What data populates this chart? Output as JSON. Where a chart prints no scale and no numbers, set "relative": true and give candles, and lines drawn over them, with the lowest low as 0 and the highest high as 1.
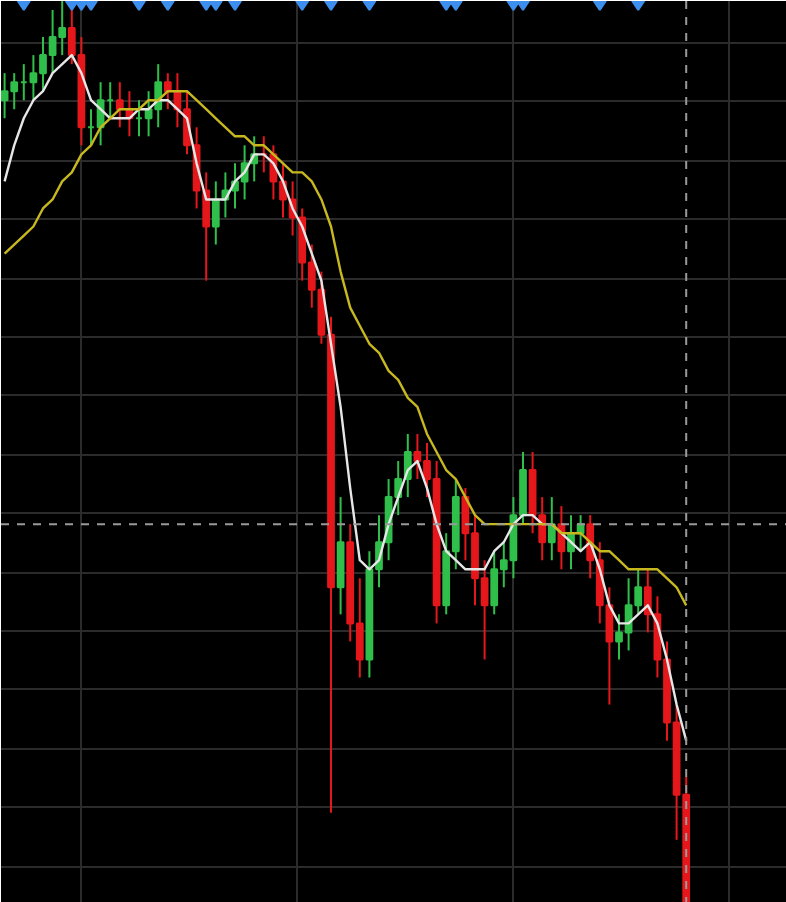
{
  "chart_data": {
    "type": "candlestick",
    "relative": true,
    "grid": true,
    "categories": [
      null,
      null,
      null,
      null,
      null,
      null,
      null,
      null,
      null,
      null,
      null,
      null,
      null,
      null,
      null,
      null,
      null,
      null,
      null,
      null,
      null,
      null,
      null,
      null,
      null,
      null,
      null,
      null,
      null,
      null,
      null,
      null,
      null,
      null,
      null,
      null,
      null,
      null,
      null,
      null,
      null,
      null,
      null,
      null,
      null,
      null,
      null,
      null,
      null,
      null,
      null,
      null,
      null,
      null,
      null,
      null,
      null,
      null,
      null,
      null,
      null,
      null,
      null,
      null,
      null,
      null,
      null,
      null,
      null,
      null,
      null,
      null
    ],
    "ohlc": [
      [
        0.89,
        0.92,
        0.87,
        0.9
      ],
      [
        0.9,
        0.92,
        0.88,
        0.91
      ],
      [
        0.91,
        0.93,
        0.89,
        0.91
      ],
      [
        0.91,
        0.94,
        0.89,
        0.92
      ],
      [
        0.92,
        0.96,
        0.9,
        0.94
      ],
      [
        0.94,
        0.99,
        0.92,
        0.96
      ],
      [
        0.96,
        1.0,
        0.94,
        0.97
      ],
      [
        0.97,
        0.99,
        0.93,
        0.94
      ],
      [
        0.94,
        0.96,
        0.84,
        0.86
      ],
      [
        0.86,
        0.88,
        0.84,
        0.86
      ],
      [
        0.86,
        0.91,
        0.84,
        0.89
      ],
      [
        0.89,
        0.91,
        0.87,
        0.89
      ],
      [
        0.89,
        0.91,
        0.86,
        0.88
      ],
      [
        0.88,
        0.9,
        0.85,
        0.87
      ],
      [
        0.87,
        0.89,
        0.85,
        0.87
      ],
      [
        0.87,
        0.9,
        0.85,
        0.88
      ],
      [
        0.88,
        0.93,
        0.86,
        0.91
      ],
      [
        0.91,
        0.92,
        0.88,
        0.9
      ],
      [
        0.9,
        0.92,
        0.86,
        0.88
      ],
      [
        0.88,
        0.9,
        0.83,
        0.84
      ],
      [
        0.84,
        0.86,
        0.77,
        0.79
      ],
      [
        0.79,
        0.81,
        0.69,
        0.75
      ],
      [
        0.75,
        0.8,
        0.73,
        0.78
      ],
      [
        0.78,
        0.81,
        0.76,
        0.79
      ],
      [
        0.79,
        0.82,
        0.77,
        0.8
      ],
      [
        0.8,
        0.84,
        0.78,
        0.82
      ],
      [
        0.82,
        0.85,
        0.8,
        0.83
      ],
      [
        0.83,
        0.85,
        0.81,
        0.83
      ],
      [
        0.83,
        0.84,
        0.78,
        0.8
      ],
      [
        0.8,
        0.82,
        0.76,
        0.78
      ],
      [
        0.78,
        0.8,
        0.74,
        0.76
      ],
      [
        0.76,
        0.77,
        0.69,
        0.71
      ],
      [
        0.71,
        0.73,
        0.66,
        0.68
      ],
      [
        0.68,
        0.7,
        0.62,
        0.63
      ],
      [
        0.63,
        0.65,
        0.1,
        0.35
      ],
      [
        0.35,
        0.45,
        0.32,
        0.4
      ],
      [
        0.4,
        0.42,
        0.29,
        0.31
      ],
      [
        0.31,
        0.36,
        0.25,
        0.27
      ],
      [
        0.27,
        0.39,
        0.25,
        0.37
      ],
      [
        0.37,
        0.43,
        0.35,
        0.4
      ],
      [
        0.4,
        0.47,
        0.38,
        0.45
      ],
      [
        0.45,
        0.49,
        0.43,
        0.47
      ],
      [
        0.47,
        0.52,
        0.45,
        0.5
      ],
      [
        0.5,
        0.52,
        0.47,
        0.49
      ],
      [
        0.49,
        0.51,
        0.45,
        0.47
      ],
      [
        0.47,
        0.49,
        0.31,
        0.33
      ],
      [
        0.33,
        0.41,
        0.32,
        0.39
      ],
      [
        0.39,
        0.47,
        0.37,
        0.45
      ],
      [
        0.45,
        0.46,
        0.38,
        0.41
      ],
      [
        0.41,
        0.43,
        0.33,
        0.36
      ],
      [
        0.36,
        0.38,
        0.27,
        0.33
      ],
      [
        0.33,
        0.39,
        0.32,
        0.37
      ],
      [
        0.37,
        0.4,
        0.35,
        0.38
      ],
      [
        0.38,
        0.45,
        0.36,
        0.43
      ],
      [
        0.43,
        0.5,
        0.42,
        0.48
      ],
      [
        0.48,
        0.5,
        0.41,
        0.43
      ],
      [
        0.43,
        0.45,
        0.38,
        0.4
      ],
      [
        0.4,
        0.45,
        0.38,
        0.42
      ],
      [
        0.42,
        0.44,
        0.37,
        0.39
      ],
      [
        0.39,
        0.43,
        0.37,
        0.41
      ],
      [
        0.41,
        0.43,
        0.39,
        0.42
      ],
      [
        0.42,
        0.43,
        0.36,
        0.38
      ],
      [
        0.38,
        0.4,
        0.31,
        0.33
      ],
      [
        0.33,
        0.35,
        0.22,
        0.29
      ],
      [
        0.29,
        0.32,
        0.27,
        0.3
      ],
      [
        0.3,
        0.36,
        0.28,
        0.33
      ],
      [
        0.33,
        0.37,
        0.32,
        0.35
      ],
      [
        0.35,
        0.37,
        0.3,
        0.32
      ],
      [
        0.32,
        0.34,
        0.25,
        0.27
      ],
      [
        0.27,
        0.29,
        0.18,
        0.2
      ],
      [
        0.2,
        0.22,
        0.07,
        0.12
      ],
      [
        0.12,
        0.14,
        0.0,
        0.0
      ]
    ],
    "colors": [
      "#2fbf4a",
      "#2fbf4a",
      "#2fbf4a",
      "#2fbf4a",
      "#2fbf4a",
      "#2fbf4a",
      "#2fbf4a",
      "#e5171b",
      "#e5171b",
      "#2fbf4a",
      "#2fbf4a",
      "#2fbf4a",
      "#e5171b",
      "#e5171b",
      "#2fbf4a",
      "#2fbf4a",
      "#2fbf4a",
      "#e5171b",
      "#e5171b",
      "#e5171b",
      "#e5171b",
      "#e5171b",
      "#2fbf4a",
      "#2fbf4a",
      "#2fbf4a",
      "#2fbf4a",
      "#2fbf4a",
      "#e5171b",
      "#e5171b",
      "#e5171b",
      "#e5171b",
      "#e5171b",
      "#e5171b",
      "#e5171b",
      "#e5171b",
      "#2fbf4a",
      "#e5171b",
      "#e5171b",
      "#2fbf4a",
      "#2fbf4a",
      "#2fbf4a",
      "#2fbf4a",
      "#2fbf4a",
      "#e5171b",
      "#e5171b",
      "#e5171b",
      "#2fbf4a",
      "#2fbf4a",
      "#e5171b",
      "#e5171b",
      "#e5171b",
      "#2fbf4a",
      "#2fbf4a",
      "#2fbf4a",
      "#2fbf4a",
      "#e5171b",
      "#e5171b",
      "#2fbf4a",
      "#e5171b",
      "#2fbf4a",
      "#2fbf4a",
      "#e5171b",
      "#e5171b",
      "#e5171b",
      "#2fbf4a",
      "#2fbf4a",
      "#2fbf4a",
      "#e5171b",
      "#e5171b",
      "#e5171b",
      "#e5171b",
      "#e5171b"
    ],
    "series": [
      {
        "type": "line",
        "color": "#e6e6e6",
        "values": [
          0.8,
          0.84,
          0.87,
          0.89,
          0.9,
          0.92,
          0.93,
          0.94,
          0.92,
          0.89,
          0.88,
          0.87,
          0.87,
          0.87,
          0.88,
          0.88,
          0.89,
          0.89,
          0.88,
          0.87,
          0.82,
          0.78,
          0.78,
          0.78,
          0.8,
          0.81,
          0.83,
          0.83,
          0.82,
          0.8,
          0.77,
          0.75,
          0.72,
          0.69,
          0.62,
          0.55,
          0.46,
          0.38,
          0.37,
          0.38,
          0.42,
          0.45,
          0.48,
          0.49,
          0.46,
          0.42,
          0.39,
          0.38,
          0.37,
          0.37,
          0.37,
          0.39,
          0.4,
          0.42,
          0.43,
          0.43,
          0.42,
          0.42,
          0.41,
          0.4,
          0.39,
          0.4,
          0.37,
          0.33,
          0.31,
          0.31,
          0.32,
          0.33,
          0.31,
          0.27,
          0.22,
          0.18
        ]
      },
      {
        "type": "line",
        "color": "#c8b820",
        "values": [
          0.72,
          0.73,
          0.74,
          0.75,
          0.77,
          0.78,
          0.8,
          0.81,
          0.83,
          0.84,
          0.86,
          0.87,
          0.88,
          0.88,
          0.88,
          0.89,
          0.89,
          0.9,
          0.9,
          0.9,
          0.89,
          0.88,
          0.87,
          0.86,
          0.85,
          0.85,
          0.84,
          0.84,
          0.83,
          0.82,
          0.81,
          0.81,
          0.8,
          0.78,
          0.75,
          0.7,
          0.66,
          0.64,
          0.62,
          0.61,
          0.59,
          0.58,
          0.56,
          0.55,
          0.52,
          0.5,
          0.48,
          0.47,
          0.45,
          0.43,
          0.42,
          0.42,
          0.42,
          0.42,
          0.42,
          0.42,
          0.42,
          0.42,
          0.41,
          0.41,
          0.41,
          0.4,
          0.39,
          0.39,
          0.38,
          0.37,
          0.37,
          0.37,
          0.37,
          0.36,
          0.35,
          0.33
        ]
      },
      {
        "type": "scatter",
        "marker": "diamond",
        "color": "#3d8fef",
        "values": [
          null,
          null,
          1,
          null,
          null,
          null,
          null,
          1,
          1,
          1,
          null,
          null,
          null,
          null,
          1,
          null,
          null,
          1,
          null,
          null,
          null,
          1,
          1,
          null,
          1,
          null,
          null,
          null,
          null,
          null,
          null,
          1,
          null,
          null,
          1,
          null,
          null,
          null,
          1,
          null,
          null,
          null,
          null,
          null,
          null,
          null,
          1,
          1,
          null,
          null,
          null,
          null,
          null,
          1,
          1,
          null,
          null,
          null,
          null,
          null,
          null,
          null,
          1,
          null,
          null,
          null,
          1,
          null,
          null,
          null,
          null,
          null
        ]
      }
    ],
    "ref_lines": [
      {
        "axis": "y",
        "value": 0.42,
        "color": "#9a9a9a",
        "line_style": "dashed"
      }
    ]
  }
}
